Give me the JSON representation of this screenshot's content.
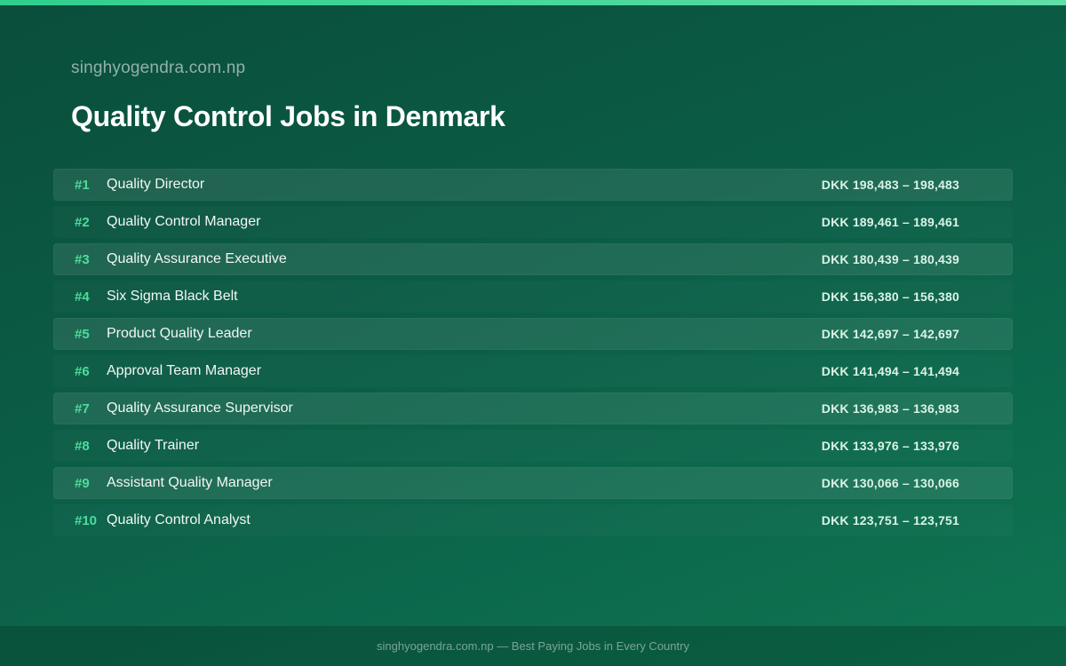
{
  "header": {
    "site_name": "singhyogendra.com.np",
    "title": "Quality Control Jobs in Denmark"
  },
  "jobs": [
    {
      "rank": "#1",
      "title": "Quality Director",
      "salary": "DKK 198,483 – 198,483"
    },
    {
      "rank": "#2",
      "title": "Quality Control Manager",
      "salary": "DKK 189,461 – 189,461"
    },
    {
      "rank": "#3",
      "title": "Quality Assurance Executive",
      "salary": "DKK 180,439 – 180,439"
    },
    {
      "rank": "#4",
      "title": "Six Sigma Black Belt",
      "salary": "DKK 156,380 – 156,380"
    },
    {
      "rank": "#5",
      "title": "Product Quality Leader",
      "salary": "DKK 142,697 – 142,697"
    },
    {
      "rank": "#6",
      "title": "Approval Team Manager",
      "salary": "DKK 141,494 – 141,494"
    },
    {
      "rank": "#7",
      "title": "Quality Assurance Supervisor",
      "salary": "DKK 136,983 – 136,983"
    },
    {
      "rank": "#8",
      "title": "Quality Trainer",
      "salary": "DKK 133,976 – 133,976"
    },
    {
      "rank": "#9",
      "title": "Assistant Quality Manager",
      "salary": "DKK 130,066 – 130,066"
    },
    {
      "rank": "#10",
      "title": "Quality Control Analyst",
      "salary": "DKK 123,751 – 123,751"
    }
  ],
  "footer": {
    "text": "singhyogendra.com.np — Best Paying Jobs in Every Country"
  },
  "colors": {
    "background": "#0b5d46",
    "accent": "#4fdc9c",
    "top_bar": "#2ecf8f"
  }
}
